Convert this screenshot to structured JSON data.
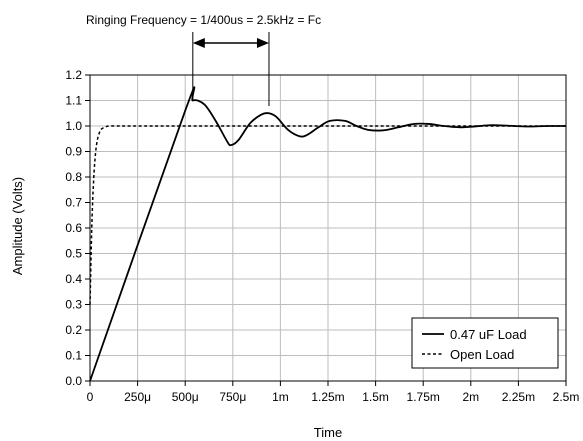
{
  "chart_data": {
    "type": "line",
    "xlabel": "Time",
    "ylabel": "Amplitude (Volts)",
    "xlim": [
      0,
      2.5
    ],
    "ylim": [
      0,
      1.2
    ],
    "x_unit": "ms",
    "x_ticks": [
      0,
      0.25,
      0.5,
      0.75,
      1.0,
      1.25,
      1.5,
      1.75,
      2.0,
      2.25,
      2.5
    ],
    "x_tick_labels": [
      "0",
      "250μ",
      "500μ",
      "750μ",
      "1m",
      "1.25m",
      "1.5m",
      "1.75m",
      "2m",
      "2.25m",
      "2.5m"
    ],
    "y_ticks": [
      0,
      0.1,
      0.2,
      0.3,
      0.4,
      0.5,
      0.6,
      0.7,
      0.8,
      0.9,
      1.0,
      1.1,
      1.2
    ],
    "y_tick_labels": [
      "0.0",
      "0.1",
      "0.2",
      "0.3",
      "0.4",
      "0.5",
      "0.6",
      "0.7",
      "0.8",
      "0.9",
      "1.0",
      "1.1",
      "1.2"
    ],
    "grid": true,
    "legend_position": "bottom-right",
    "annotation": "Ringing Frequency = 1/400us = 2.5kHz = Fc",
    "annotation_span": [
      0.54,
      0.94
    ],
    "series": [
      {
        "name": "0.47 uF Load",
        "style": "solid",
        "color": "#000000",
        "x": [
          0,
          0.5,
          0.54,
          0.6,
          0.66,
          0.72,
          0.74,
          0.78,
          0.84,
          0.9,
          0.94,
          0.98,
          1.04,
          1.1,
          1.14,
          1.2,
          1.26,
          1.34,
          1.4,
          1.46,
          1.54,
          1.62,
          1.7,
          1.78,
          1.86,
          1.94,
          2.0,
          2.1,
          2.2,
          2.3,
          2.4,
          2.5
        ],
        "y": [
          0.0,
          1.06,
          1.1,
          1.085,
          1.02,
          0.94,
          0.925,
          0.945,
          1.01,
          1.045,
          1.05,
          1.035,
          0.985,
          0.96,
          0.965,
          0.995,
          1.02,
          1.02,
          1.0,
          0.985,
          0.983,
          0.995,
          1.008,
          1.008,
          1.0,
          0.995,
          0.997,
          1.003,
          1.001,
          0.998,
          1.0,
          1.0
        ]
      },
      {
        "name": "Open Load",
        "style": "dashed",
        "color": "#000000",
        "x": [
          0,
          0.01,
          0.02,
          0.03,
          0.04,
          0.05,
          0.06,
          0.08,
          0.1,
          0.15,
          0.2,
          0.5,
          1.0,
          1.5,
          2.0,
          2.5
        ],
        "y": [
          0.3,
          0.62,
          0.8,
          0.9,
          0.95,
          0.975,
          0.988,
          0.996,
          1.0,
          1.0,
          1.0,
          1.0,
          1.0,
          1.0,
          1.0,
          1.0
        ]
      }
    ]
  }
}
